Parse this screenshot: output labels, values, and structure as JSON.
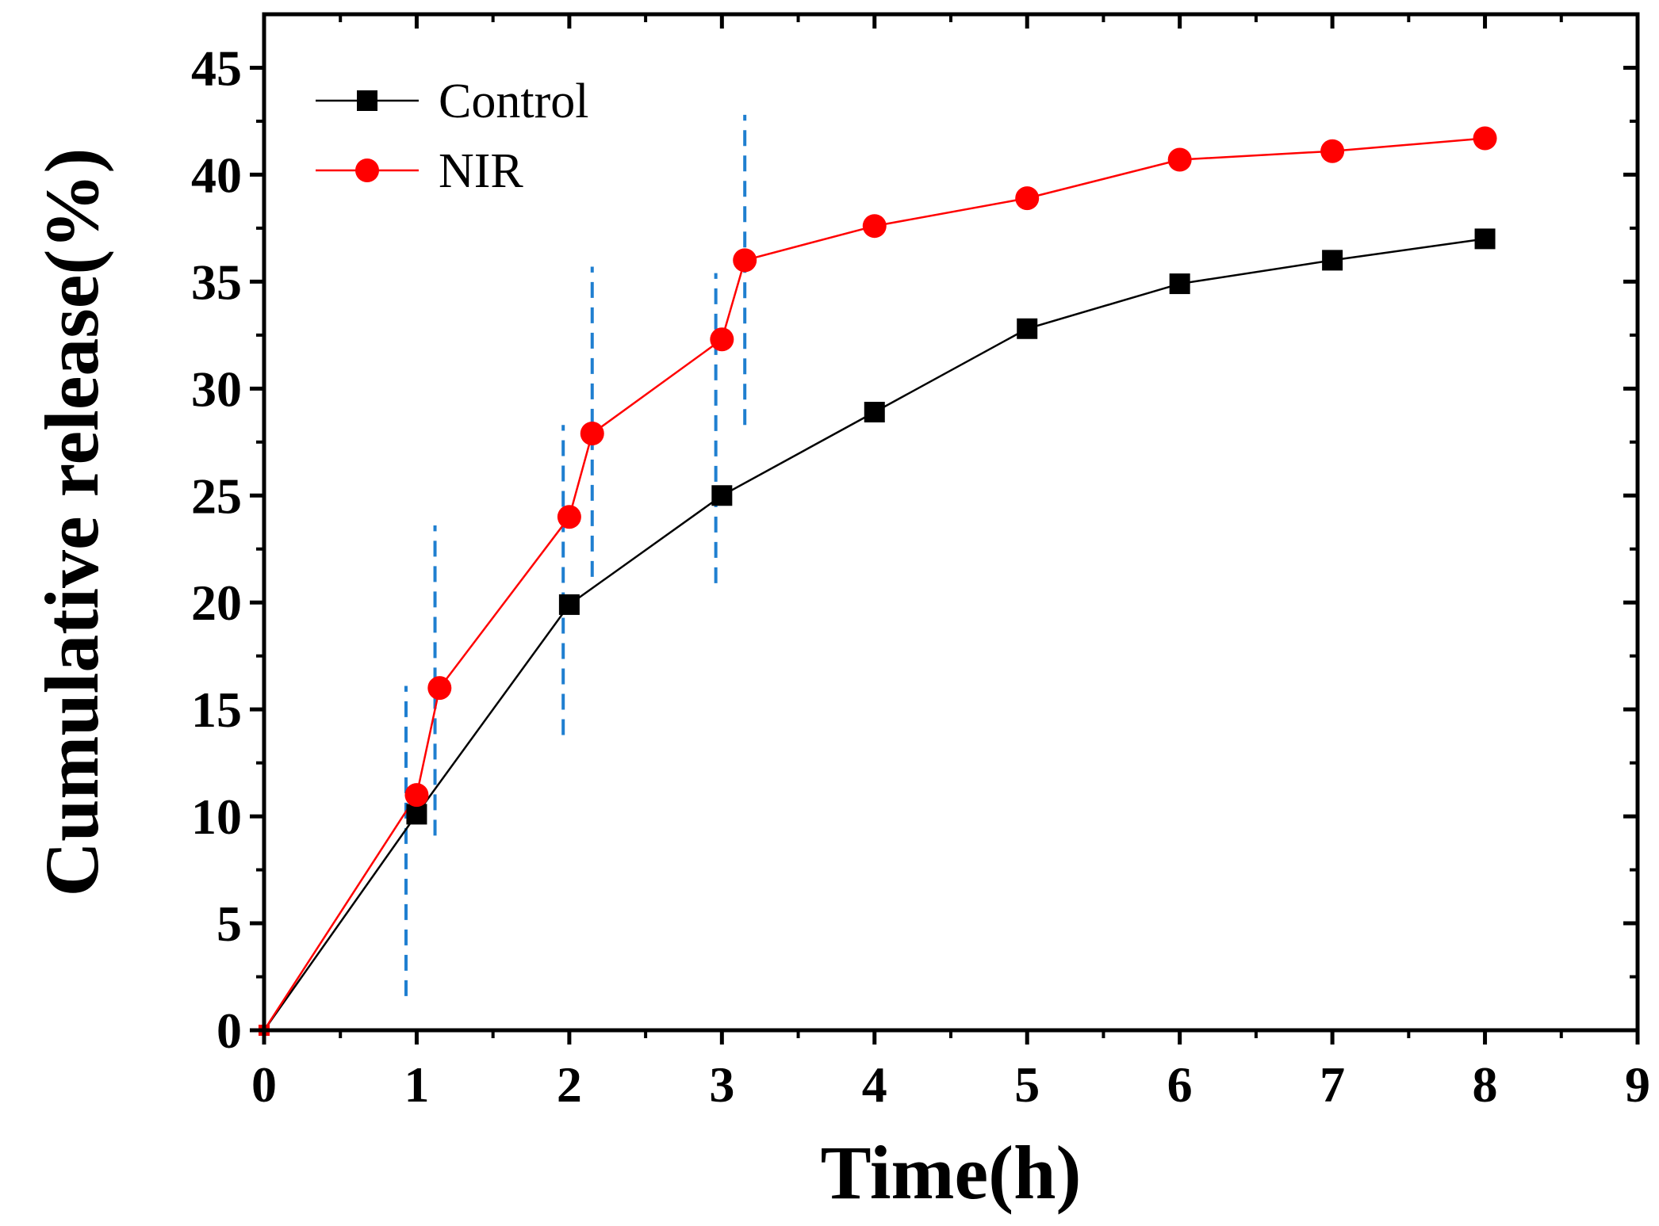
{
  "chart_data": {
    "type": "line",
    "title": "",
    "xlabel": "Time(h)",
    "ylabel": "Cumulative release(%)",
    "xlim": [
      0,
      9
    ],
    "ylim": [
      0,
      47.5
    ],
    "x_ticks": [
      0,
      1,
      2,
      3,
      4,
      5,
      6,
      7,
      8,
      9
    ],
    "y_ticks": [
      0,
      5,
      10,
      15,
      20,
      25,
      30,
      35,
      40,
      45
    ],
    "x_tick_labels": [
      "0",
      "1",
      "2",
      "3",
      "4",
      "5",
      "6",
      "7",
      "8",
      "9"
    ],
    "y_tick_labels": [
      "0",
      "5",
      "10",
      "15",
      "20",
      "25",
      "30",
      "35",
      "40",
      "45"
    ],
    "grid": false,
    "legend_position": "top-left",
    "series": [
      {
        "name": "Control",
        "color": "#000000",
        "marker": "square",
        "x": [
          0,
          1,
          2,
          3,
          4,
          5,
          6,
          7,
          8
        ],
        "y": [
          0,
          10.1,
          19.9,
          25.0,
          28.9,
          32.8,
          34.9,
          36.0,
          37.0
        ]
      },
      {
        "name": "NIR",
        "color": "#ff0000",
        "marker": "circle",
        "x": [
          0,
          1,
          1.15,
          2,
          2.15,
          3,
          3.15,
          4,
          5,
          6,
          7,
          8
        ],
        "y": [
          0,
          11.0,
          16.0,
          24.0,
          27.9,
          32.3,
          36.0,
          37.6,
          38.9,
          40.7,
          41.1,
          41.7
        ]
      }
    ],
    "annotations": [
      {
        "type": "vertical-dashed-line",
        "color": "#1f7fd0",
        "x": 0.93,
        "y_range": [
          1.6,
          16.1
        ]
      },
      {
        "type": "vertical-dashed-line",
        "color": "#1f7fd0",
        "x": 1.12,
        "y_range": [
          9.1,
          23.6
        ]
      },
      {
        "type": "vertical-dashed-line",
        "color": "#1f7fd0",
        "x": 1.96,
        "y_range": [
          13.8,
          28.3
        ]
      },
      {
        "type": "vertical-dashed-line",
        "color": "#1f7fd0",
        "x": 2.15,
        "y_range": [
          21.2,
          35.7
        ]
      },
      {
        "type": "vertical-dashed-line",
        "color": "#1f7fd0",
        "x": 2.96,
        "y_range": [
          20.9,
          35.4
        ]
      },
      {
        "type": "vertical-dashed-line",
        "color": "#1f7fd0",
        "x": 3.15,
        "y_range": [
          28.3,
          42.8
        ]
      }
    ]
  }
}
